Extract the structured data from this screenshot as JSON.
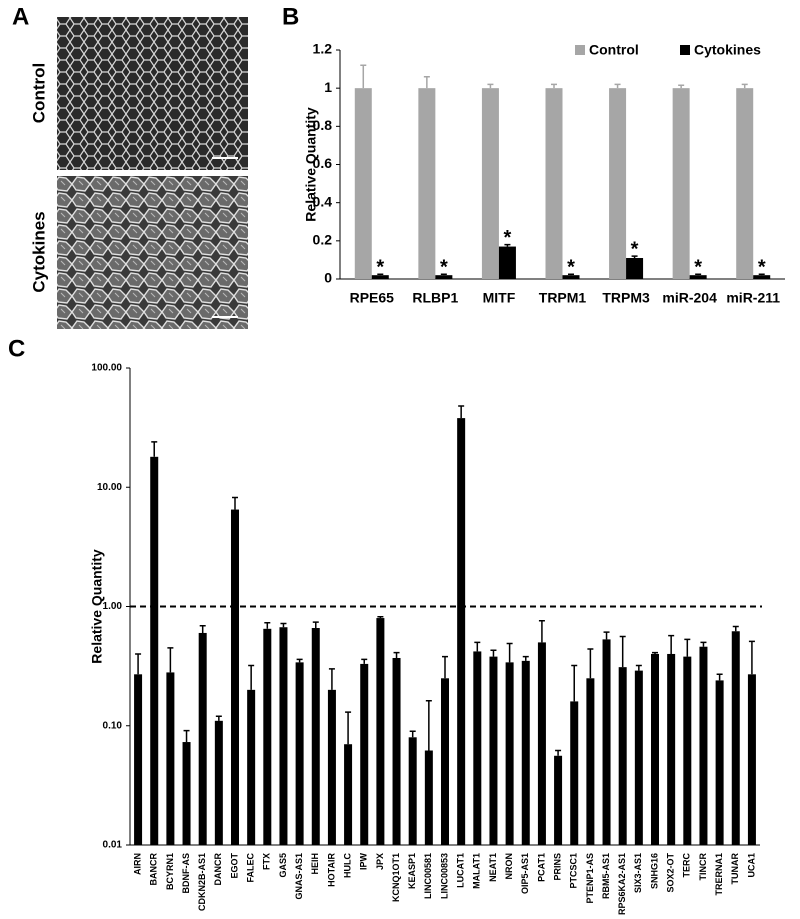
{
  "figure": {
    "panel_labels": [
      "A",
      "B",
      "C"
    ],
    "image_labels": [
      "Control",
      "Cytokines"
    ]
  },
  "chart_data": [
    {
      "type": "bar",
      "ylabel": "Relative Quantity",
      "categories": [
        "RPE65",
        "RLBP1",
        "MITF",
        "TRPM1",
        "TRPM3",
        "miR-204",
        "miR-211"
      ],
      "series": [
        {
          "name": "Control",
          "color": "#a6a6a6",
          "values": [
            1,
            1,
            1,
            1,
            1,
            1,
            1
          ],
          "errors": [
            0.12,
            0.06,
            0.02,
            0.02,
            0.02,
            0.015,
            0.02
          ]
        },
        {
          "name": "Cytokines",
          "color": "#000000",
          "values": [
            0.02,
            0.02,
            0.17,
            0.02,
            0.11,
            0.02,
            0.02
          ],
          "errors": [
            0.005,
            0.005,
            0.01,
            0.005,
            0.01,
            0.005,
            0.005
          ],
          "significance_labels": [
            "*",
            "*",
            "*",
            "*",
            "*",
            "*",
            "*"
          ]
        }
      ],
      "ylim": [
        0,
        1.2
      ],
      "yticks": [
        0,
        0.2,
        0.4,
        0.6,
        0.8,
        1,
        1.2
      ],
      "grid": false,
      "legend": "top-right"
    },
    {
      "type": "bar",
      "ylabel": "Relative Quantity",
      "log_scale": true,
      "reference_line": 1,
      "categories": [
        "AIRN",
        "BANCR",
        "BCYRN1",
        "BDNF-AS",
        "CDKN2B-AS1",
        "DANCR",
        "EGOT",
        "FALEC",
        "FTX",
        "GAS5",
        "GNAS-AS1",
        "HEIH",
        "HOTAIR",
        "HULC",
        "IPW",
        "JPX",
        "KCNQ1OT1",
        "KEASP1",
        "LINC00581",
        "LINC00853",
        "LUCAT1",
        "MALAT1",
        "NEAT1",
        "NRON",
        "OIP5-AS1",
        "PCAT1",
        "PRINS",
        "PTCSC1",
        "PTENP1-AS",
        "RBM5-AS1",
        "RPS6KA2-AS1",
        "SIX3-AS1",
        "SNHG16",
        "SOX2-OT",
        "TERC",
        "TINCR",
        "TRERNA1",
        "TUNAR",
        "UCA1"
      ],
      "series": [
        {
          "color": "#000000",
          "values": [
            0.27,
            18,
            0.28,
            0.073,
            0.6,
            0.11,
            6.5,
            0.2,
            0.65,
            0.67,
            0.34,
            0.66,
            0.2,
            0.07,
            0.33,
            0.8,
            0.37,
            0.08,
            0.062,
            0.25,
            38,
            0.42,
            0.38,
            0.34,
            0.35,
            0.5,
            0.056,
            0.16,
            0.25,
            0.53,
            0.31,
            0.29,
            0.4,
            0.4,
            0.38,
            0.46,
            0.24,
            0.62,
            0.27
          ],
          "errors": [
            0.13,
            6,
            0.17,
            0.018,
            0.09,
            0.01,
            1.7,
            0.12,
            0.08,
            0.05,
            0.02,
            0.08,
            0.1,
            0.06,
            0.03,
            0.02,
            0.04,
            0.01,
            0.1,
            0.13,
            10,
            0.08,
            0.05,
            0.15,
            0.03,
            0.26,
            0.006,
            0.16,
            0.19,
            0.08,
            0.25,
            0.03,
            0.01,
            0.17,
            0.15,
            0.04,
            0.03,
            0.06,
            0.24
          ]
        }
      ],
      "ylim": [
        0.01,
        100
      ],
      "yticks": [
        {
          "value": 0.01,
          "label": "0.01"
        },
        {
          "value": 0.1,
          "label": "0.10"
        },
        {
          "value": 1,
          "label": "1.00"
        },
        {
          "value": 10,
          "label": "10.00"
        },
        {
          "value": 100,
          "label": "100.00"
        }
      ],
      "grid": false
    }
  ]
}
